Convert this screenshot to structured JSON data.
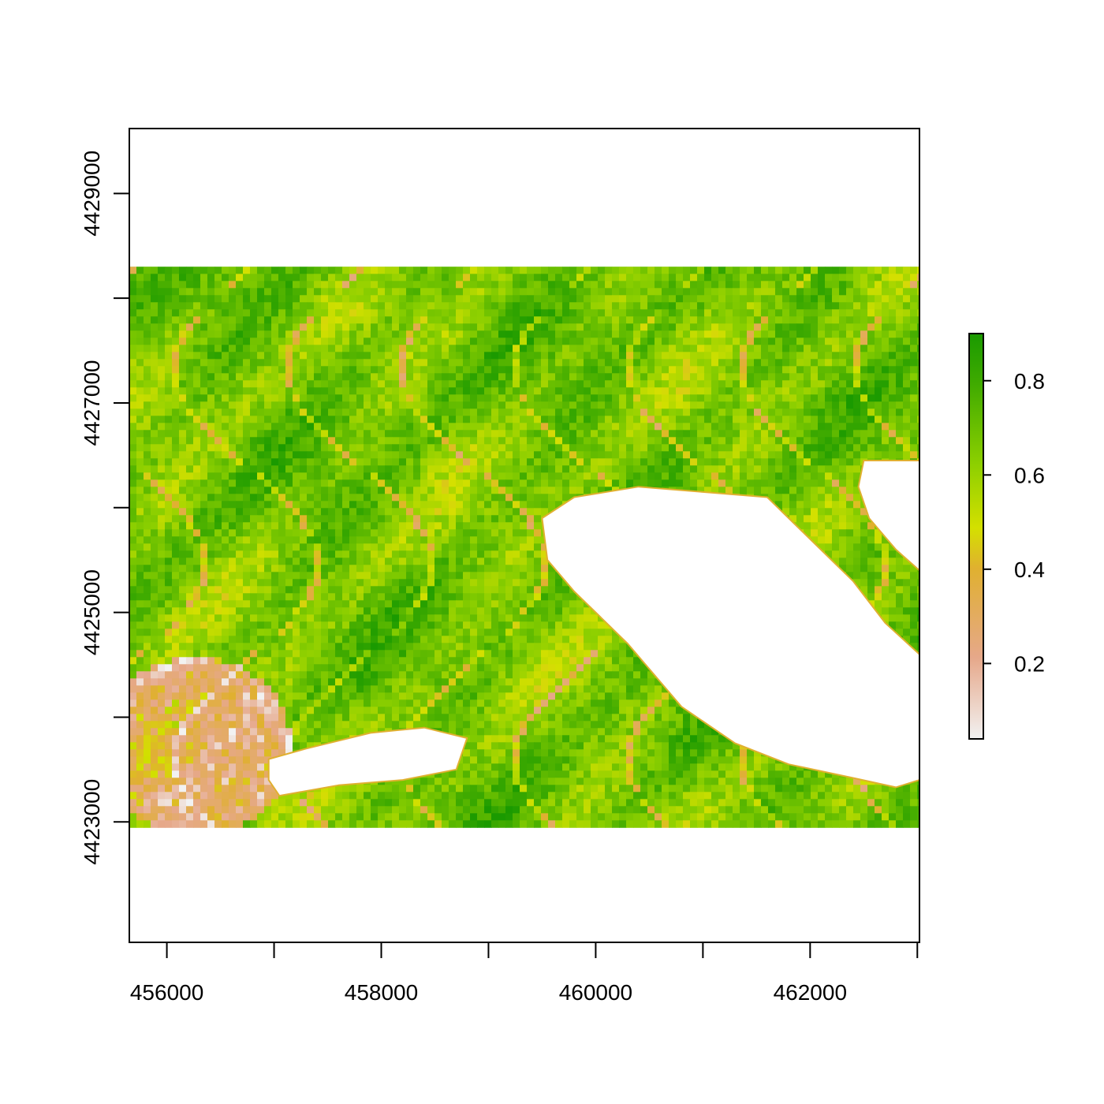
{
  "chart_data": {
    "type": "heatmap",
    "title": "",
    "xlabel": "",
    "ylabel": "",
    "xlim": [
      455650,
      463020
    ],
    "ylim": [
      4421850,
      4429620
    ],
    "data_extent": {
      "x": [
        455650,
        463020
      ],
      "y": [
        4423000,
        4428300
      ]
    },
    "x_ticks": [
      {
        "value": 456000,
        "label": "456000"
      },
      {
        "value": 457000,
        "label": ""
      },
      {
        "value": 458000,
        "label": "458000"
      },
      {
        "value": 459000,
        "label": ""
      },
      {
        "value": 460000,
        "label": "460000"
      },
      {
        "value": 461000,
        "label": ""
      },
      {
        "value": 462000,
        "label": "462000"
      },
      {
        "value": 463000,
        "label": ""
      }
    ],
    "y_ticks": [
      {
        "value": 4423000,
        "label": "4423000"
      },
      {
        "value": 4424000,
        "label": ""
      },
      {
        "value": 4425000,
        "label": "4425000"
      },
      {
        "value": 4426000,
        "label": ""
      },
      {
        "value": 4427000,
        "label": "4427000"
      },
      {
        "value": 4428000,
        "label": ""
      },
      {
        "value": 4429000,
        "label": "4429000"
      }
    ],
    "legend": {
      "placement": "right",
      "range": [
        0.04,
        0.9
      ],
      "ticks": [
        {
          "value": 0.2,
          "label": "0.2"
        },
        {
          "value": 0.4,
          "label": "0.4"
        },
        {
          "value": 0.6,
          "label": "0.6"
        },
        {
          "value": 0.8,
          "label": "0.8"
        }
      ]
    },
    "colors": [
      "#f2f2f2",
      "#e6a88a",
      "#e0b030",
      "#d4e000",
      "#8ccf00",
      "#3eaa00",
      "#1a9a00"
    ],
    "no_data_regions": [
      {
        "name": "large-lake",
        "polygon": [
          [
            459500,
            4425900
          ],
          [
            459800,
            4426100
          ],
          [
            460400,
            4426200
          ],
          [
            461000,
            4426150
          ],
          [
            461600,
            4426100
          ],
          [
            462000,
            4425700
          ],
          [
            462400,
            4425300
          ],
          [
            462700,
            4424900
          ],
          [
            463020,
            4424600
          ],
          [
            463020,
            4423400
          ],
          [
            462800,
            4423330
          ],
          [
            462400,
            4423420
          ],
          [
            461800,
            4423550
          ],
          [
            461300,
            4423750
          ],
          [
            460800,
            4424100
          ],
          [
            460300,
            4424700
          ],
          [
            459800,
            4425200
          ],
          [
            459550,
            4425500
          ]
        ]
      },
      {
        "name": "east-pond",
        "polygon": [
          [
            462500,
            4426450
          ],
          [
            463020,
            4426450
          ],
          [
            463020,
            4425400
          ],
          [
            462800,
            4425600
          ],
          [
            462550,
            4425900
          ],
          [
            462450,
            4426200
          ]
        ]
      },
      {
        "name": "small-lake",
        "polygon": [
          [
            456950,
            4423600
          ],
          [
            457300,
            4423700
          ],
          [
            457900,
            4423850
          ],
          [
            458400,
            4423900
          ],
          [
            458800,
            4423800
          ],
          [
            458700,
            4423500
          ],
          [
            458200,
            4423400
          ],
          [
            457600,
            4423350
          ],
          [
            457050,
            4423250
          ],
          [
            456950,
            4423400
          ]
        ]
      }
    ]
  }
}
